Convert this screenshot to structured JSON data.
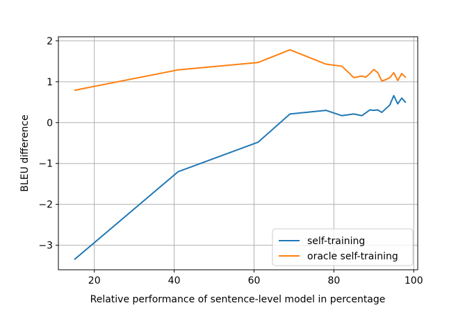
{
  "chart_data": {
    "type": "line",
    "title": "",
    "xlabel": "Relative performance of sentence-level model in percentage",
    "ylabel": "BLEU difference",
    "xlim": [
      11,
      101
    ],
    "ylim": [
      -3.6,
      2.1
    ],
    "xticks": [
      20,
      40,
      60,
      80,
      100
    ],
    "yticks": [
      -3,
      -2,
      -1,
      0,
      1,
      2
    ],
    "xtick_labels": [
      "20",
      "40",
      "60",
      "80",
      "100"
    ],
    "ytick_labels": [
      "−3",
      "−2",
      "−1",
      "0",
      "1",
      "2"
    ],
    "grid": true,
    "legend": "bottom-right",
    "series": [
      {
        "name": "self-training",
        "color": "#1f77b4",
        "x": [
          15,
          41,
          61,
          69,
          78,
          82,
          85,
          87,
          89,
          90,
          91,
          92,
          94,
          95,
          96,
          97,
          98
        ],
        "y": [
          -3.35,
          -1.2,
          -0.48,
          0.21,
          0.3,
          0.17,
          0.21,
          0.17,
          0.31,
          0.3,
          0.31,
          0.25,
          0.43,
          0.66,
          0.46,
          0.6,
          0.49
        ]
      },
      {
        "name": "oracle self-training",
        "color": "#ff7f0e",
        "x": [
          15,
          41,
          61,
          69,
          78,
          82,
          85,
          87,
          88,
          89,
          90,
          91,
          92,
          93,
          94,
          95,
          96,
          97,
          98
        ],
        "y": [
          0.79,
          1.29,
          1.47,
          1.78,
          1.43,
          1.38,
          1.1,
          1.14,
          1.11,
          1.2,
          1.3,
          1.22,
          1.02,
          1.05,
          1.1,
          1.22,
          1.03,
          1.2,
          1.1
        ]
      }
    ]
  }
}
